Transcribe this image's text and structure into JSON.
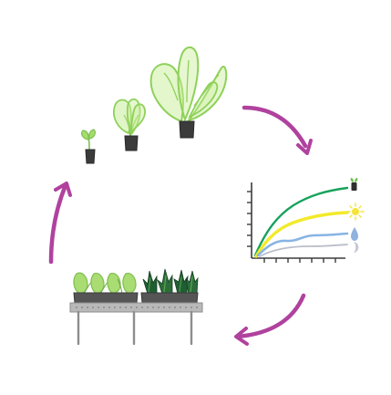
{
  "diagram": {
    "kind": "cycle",
    "stages": [
      {
        "id": "growth",
        "icon": "growing-plants-icon",
        "plant_count": 3
      },
      {
        "id": "monitoring",
        "icon": "growth-chart-icon",
        "series": [
          "plant",
          "light",
          "water",
          "nutrient"
        ]
      },
      {
        "id": "production",
        "icon": "greenhouse-bench-icon",
        "trays": 2,
        "plants_per_tray": 4
      }
    ],
    "arrows": [
      "growth-to-monitoring",
      "monitoring-to-production",
      "production-to-growth"
    ],
    "colors": {
      "arrow": "#b0429e",
      "leaf_light": "#a6dd6e",
      "leaf_dark": "#1f5e32",
      "leaf_medium": "#4d9a4e",
      "pot": "#3b3b3b",
      "curve_green": "#17a35c",
      "curve_yellow": "#f2ea2a",
      "curve_blue": "#88b4e4",
      "curve_gray": "#b9bfca",
      "bench": "#8d8d8d",
      "sun": "#f4e43a",
      "water": "#8fb3de"
    }
  }
}
